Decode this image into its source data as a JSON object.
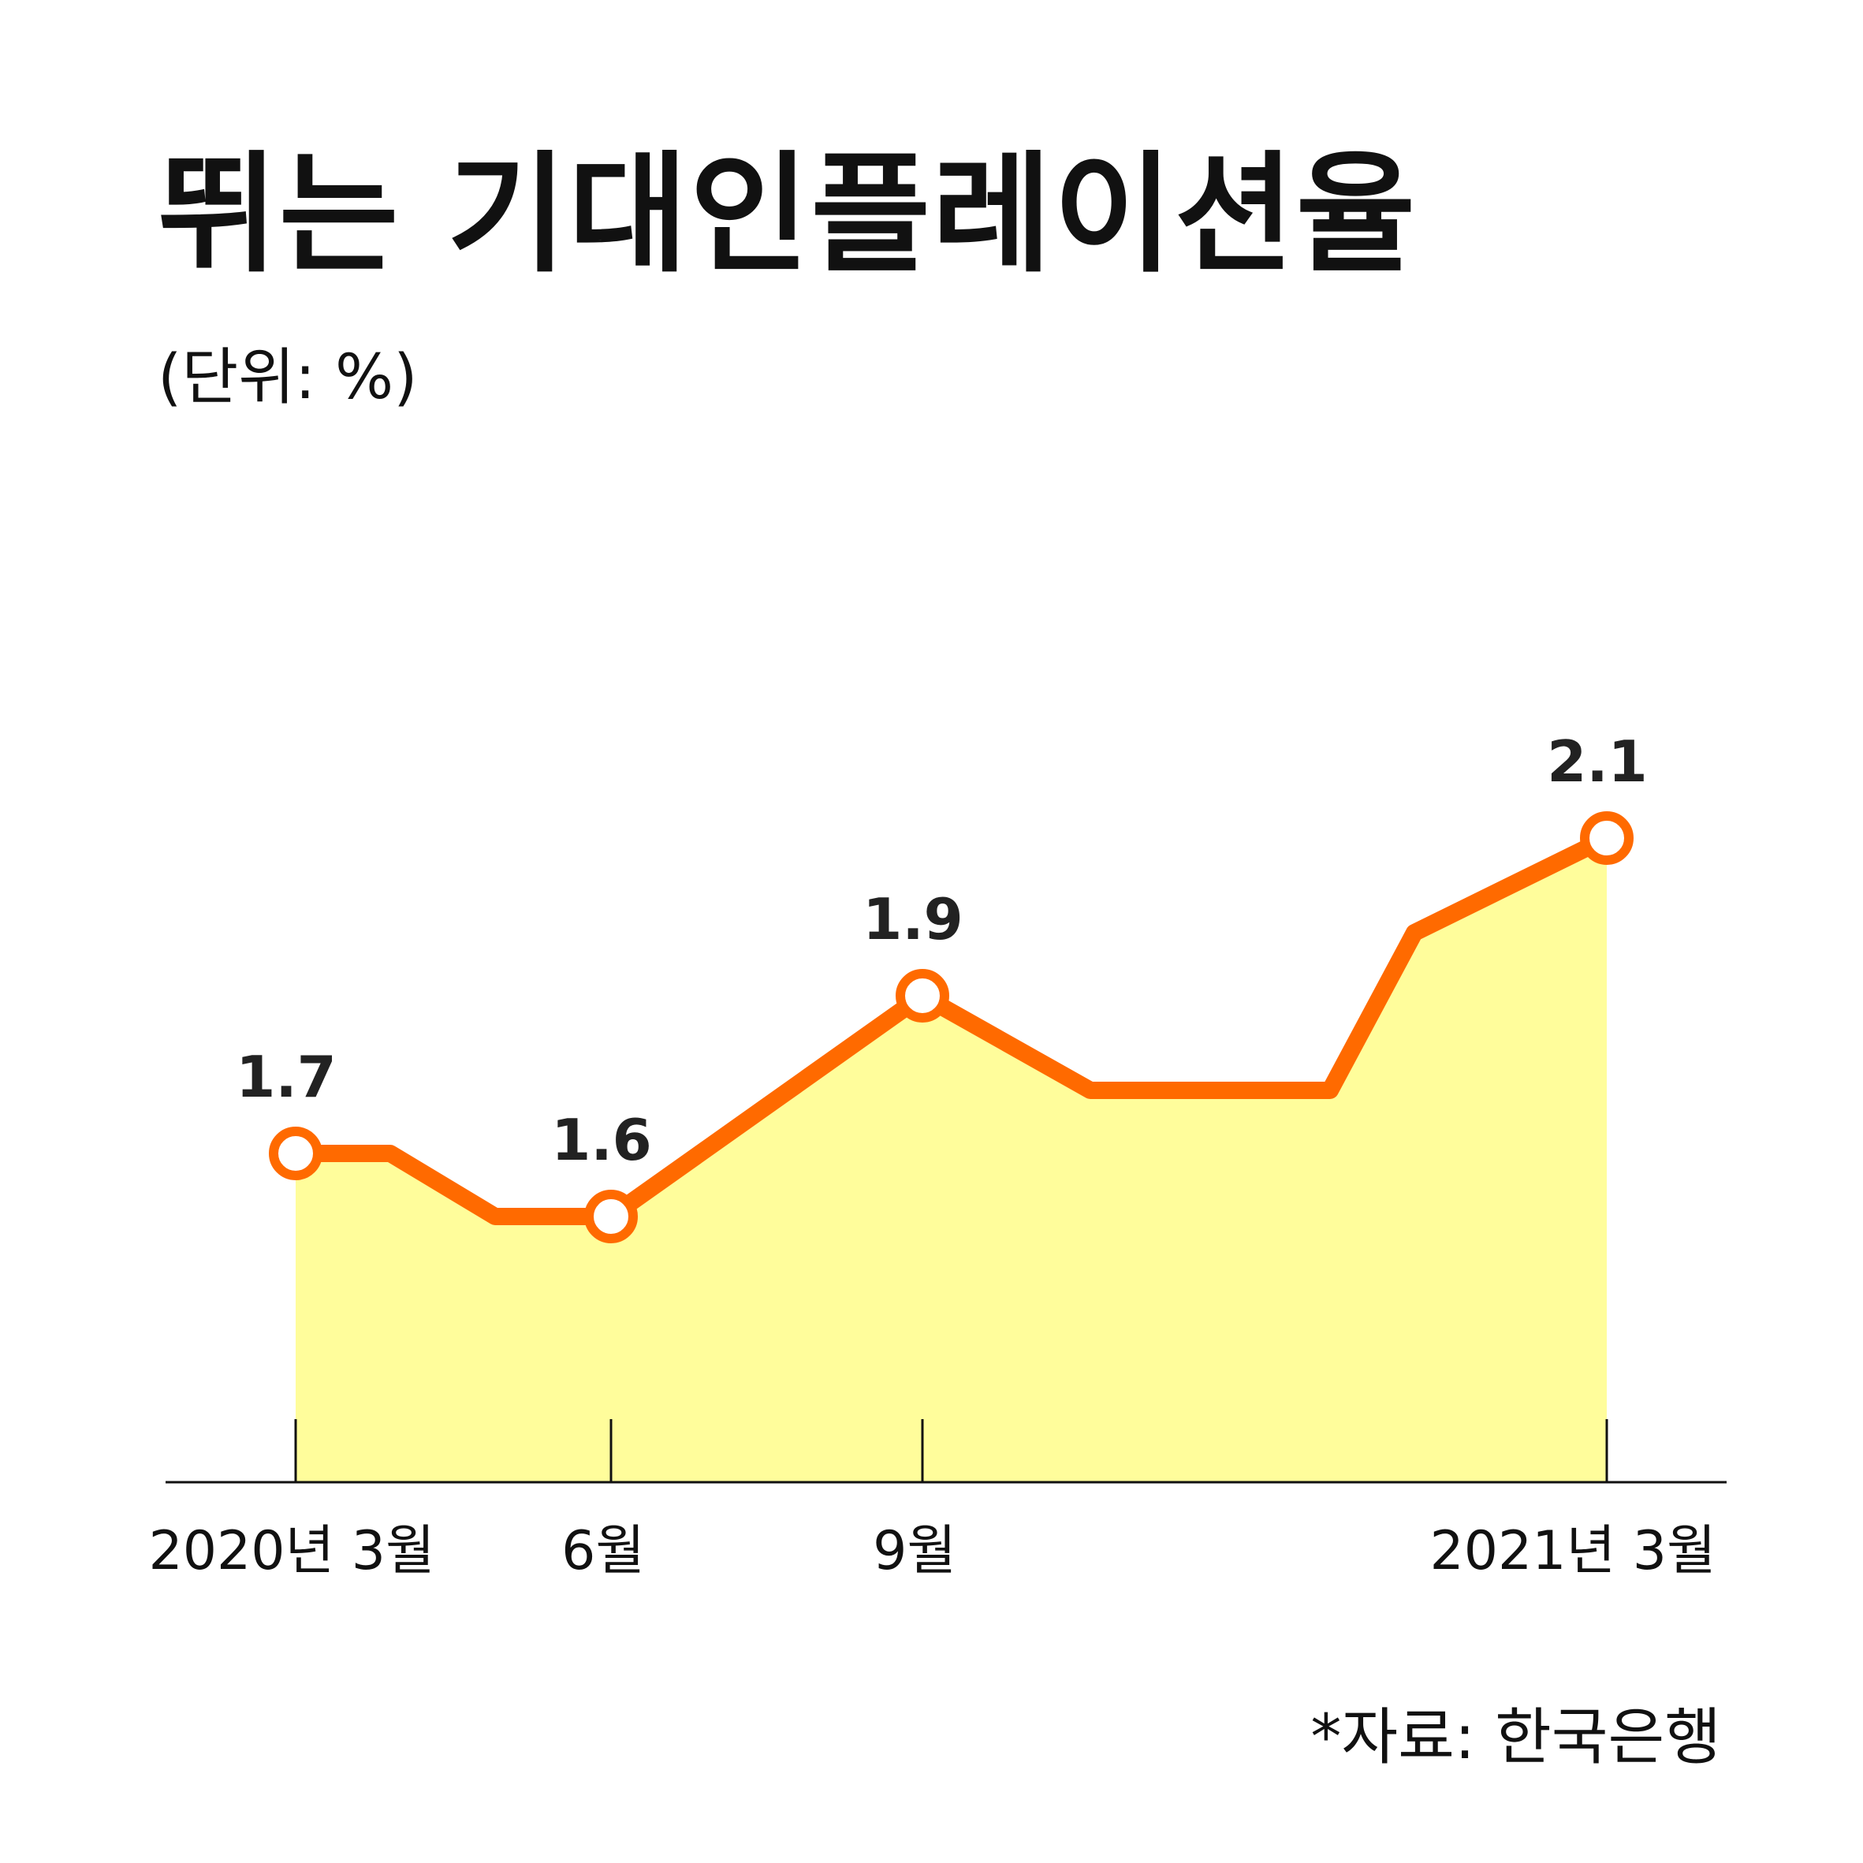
{
  "title": "뛰는 기대인플레이션율",
  "unit_label": "(단위: %)",
  "source": "*자료: 한국은행",
  "colors": {
    "line": "#ff6a00",
    "fill": "#fffd9b",
    "axis": "#111111",
    "marker_fill": "#ffffff"
  },
  "chart_data": {
    "type": "area",
    "x_labels": [
      "2020년 3월",
      "6월",
      "9월",
      "2021년 3월"
    ],
    "values": [
      1.7,
      1.7,
      1.62,
      1.62,
      1.9,
      1.78,
      1.78,
      1.78,
      1.98,
      2.1
    ],
    "labeled_points": [
      {
        "index": 0,
        "label": "1.7"
      },
      {
        "index": 3,
        "label": "1.6"
      },
      {
        "index": 4,
        "label": "1.9"
      },
      {
        "index": 9,
        "label": "2.1"
      }
    ],
    "grid": false,
    "legend": "none"
  }
}
